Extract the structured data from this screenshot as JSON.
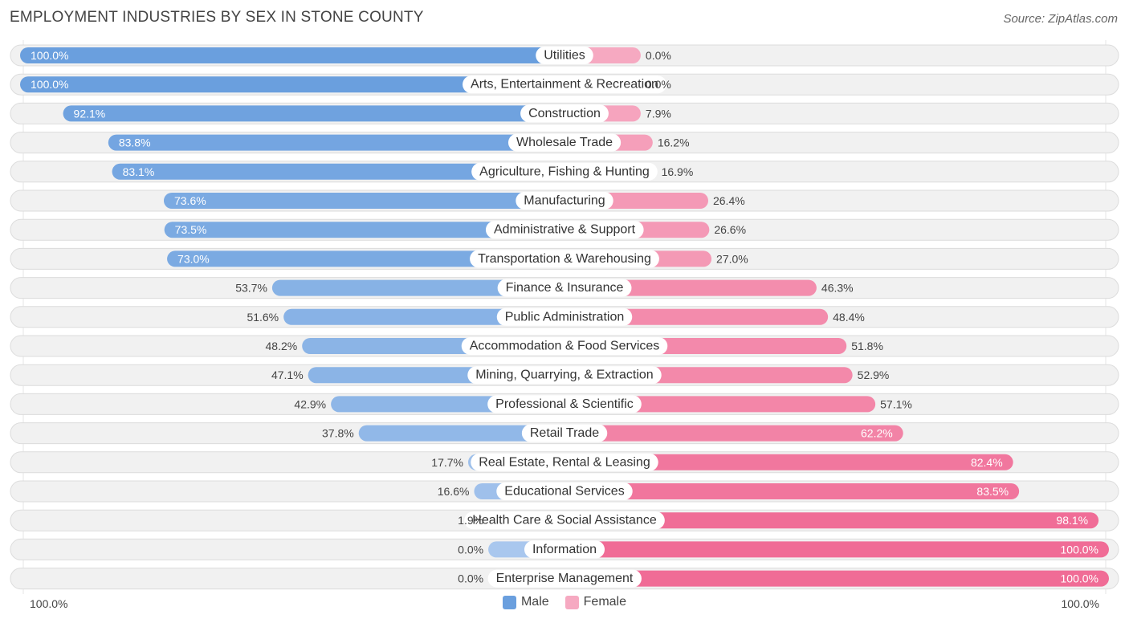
{
  "header": {
    "title": "EMPLOYMENT INDUSTRIES BY SEX IN STONE COUNTY",
    "source": "Source: ZipAtlas.com"
  },
  "colors": {
    "male_strong": "#6a9fde",
    "male_light": "#a9c7ee",
    "female_strong": "#f06c96",
    "female_light": "#f6a9c1"
  },
  "legend": {
    "male": "Male",
    "female": "Female"
  },
  "axis": {
    "left_label": "100.0%",
    "right_label": "100.0%"
  },
  "chart_data": {
    "type": "bar",
    "orientation": "horizontal-diverging",
    "title": "EMPLOYMENT INDUSTRIES BY SEX IN STONE COUNTY",
    "xlim": [
      0,
      100
    ],
    "categories": [
      "Utilities",
      "Arts, Entertainment & Recreation",
      "Construction",
      "Wholesale Trade",
      "Agriculture, Fishing & Hunting",
      "Manufacturing",
      "Administrative & Support",
      "Transportation & Warehousing",
      "Finance & Insurance",
      "Public Administration",
      "Accommodation & Food Services",
      "Mining, Quarrying, & Extraction",
      "Professional & Scientific",
      "Retail Trade",
      "Real Estate, Rental & Leasing",
      "Educational Services",
      "Health Care & Social Assistance",
      "Information",
      "Enterprise Management"
    ],
    "series": [
      {
        "name": "Male",
        "values": [
          100.0,
          100.0,
          92.1,
          83.8,
          83.1,
          73.6,
          73.5,
          73.0,
          53.7,
          51.6,
          48.2,
          47.1,
          42.9,
          37.8,
          17.7,
          16.6,
          1.9,
          0.0,
          0.0
        ],
        "labels": [
          "100.0%",
          "100.0%",
          "92.1%",
          "83.8%",
          "83.1%",
          "73.6%",
          "73.5%",
          "73.0%",
          "53.7%",
          "51.6%",
          "48.2%",
          "47.1%",
          "42.9%",
          "37.8%",
          "17.7%",
          "16.6%",
          "1.9%",
          "0.0%",
          "0.0%"
        ]
      },
      {
        "name": "Female",
        "values": [
          0.0,
          0.0,
          7.9,
          16.2,
          16.9,
          26.4,
          26.6,
          27.0,
          46.3,
          48.4,
          51.8,
          52.9,
          57.1,
          62.2,
          82.4,
          83.5,
          98.1,
          100.0,
          100.0
        ],
        "labels": [
          "0.0%",
          "0.0%",
          "7.9%",
          "16.2%",
          "16.9%",
          "26.4%",
          "26.6%",
          "27.0%",
          "46.3%",
          "48.4%",
          "51.8%",
          "52.9%",
          "57.1%",
          "62.2%",
          "82.4%",
          "83.5%",
          "98.1%",
          "100.0%",
          "100.0%"
        ]
      }
    ],
    "legend_position": "bottom-center"
  }
}
